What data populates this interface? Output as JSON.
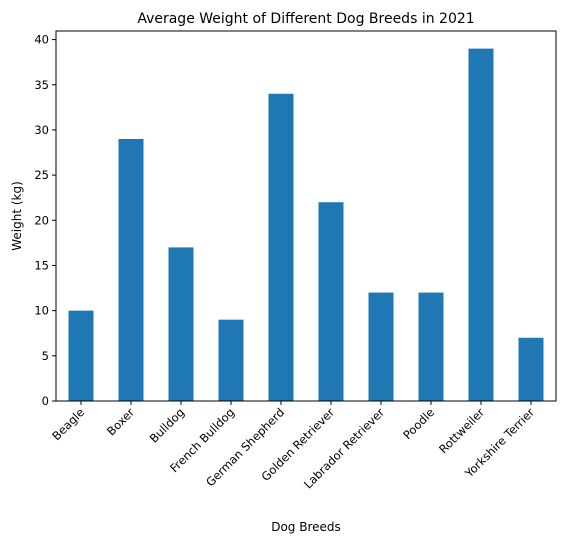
{
  "chart_data": {
    "type": "bar",
    "title": "Average Weight of Different Dog Breeds in 2021",
    "xlabel": "Dog Breeds",
    "ylabel": "Weight (kg)",
    "categories": [
      "Beagle",
      "Boxer",
      "Bulldog",
      "French Bulldog",
      "German Shepherd",
      "Golden Retriever",
      "Labrador Retriever",
      "Poodle",
      "Rottweiler",
      "Yorkshire Terrier"
    ],
    "values": [
      10,
      29,
      17,
      9,
      34,
      22,
      12,
      12,
      39,
      7
    ],
    "ylim": [
      0,
      40.95
    ],
    "yticks": [
      0,
      5,
      10,
      15,
      20,
      25,
      30,
      35,
      40
    ],
    "grid": false,
    "legend": "none",
    "bar_color": "#1f77b4"
  }
}
